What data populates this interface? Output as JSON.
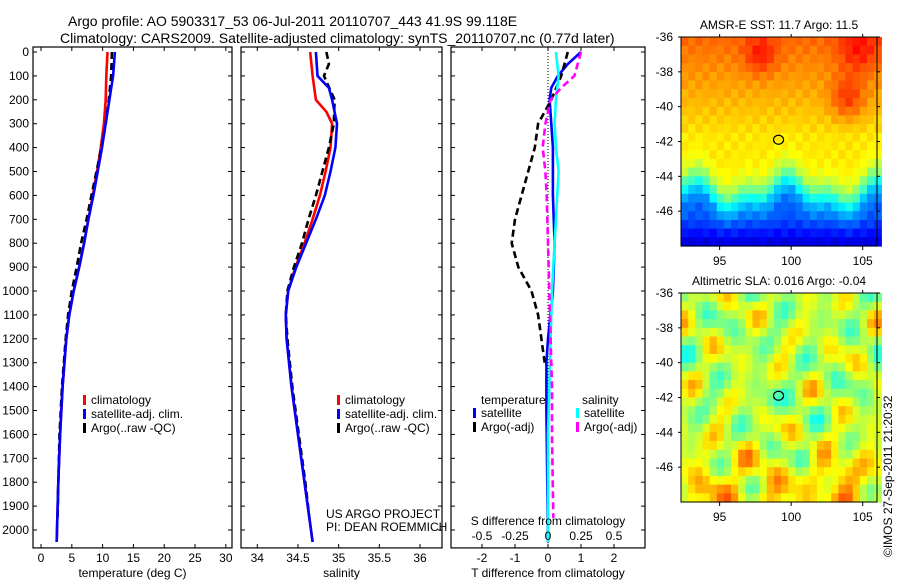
{
  "title_line1": "Argo profile: AO 5903317_53 06-Jul-2011 20110707_443 41.9S 99.118E",
  "title_line2": "Climatology: CARS2009. Satellite-adjusted climatology: synTS_20110707.nc (0.77d later)",
  "project_line1": "US ARGO PROJECT",
  "project_line2": "PI: DEAN ROEMMICH",
  "copyright": "©IMOS 27-Sep-2011 21:20:32",
  "colors": {
    "climatology": "#ff0000",
    "satellite": "#0000ff",
    "argo": "#000000",
    "sal_satellite": "#00ffff",
    "sal_argo": "#ff00ff"
  },
  "chart_data": [
    {
      "type": "line",
      "title": "",
      "xlabel": "temperature (deg C)",
      "ylabel": "",
      "xlim": [
        -1.3,
        31
      ],
      "ylim": [
        2075,
        0
      ],
      "xticks": [
        0,
        5,
        10,
        15,
        20,
        25,
        30
      ],
      "yticks": [
        0,
        100,
        200,
        300,
        400,
        500,
        600,
        700,
        800,
        900,
        1000,
        1100,
        1200,
        1300,
        1400,
        1500,
        1600,
        1700,
        1800,
        1900,
        2000
      ],
      "legend": [
        "climatology",
        "satellite-adj. clim.",
        "Argo(..raw -QC)"
      ],
      "legend_placement": "lower-center",
      "series": [
        {
          "name": "climatology",
          "depth": [
            0,
            100,
            200,
            300,
            400,
            500,
            600,
            700,
            800,
            900,
            1000,
            1100,
            1200,
            1400,
            1600,
            1800,
            2000,
            2050
          ],
          "values": [
            10.8,
            10.6,
            10.5,
            10.2,
            9.7,
            9.1,
            8.4,
            7.7,
            7.0,
            6.2,
            5.3,
            4.6,
            4.1,
            3.5,
            3.1,
            2.8,
            2.6,
            2.55
          ]
        },
        {
          "name": "satellite-adj. clim.",
          "depth": [
            0,
            100,
            200,
            300,
            400,
            500,
            600,
            700,
            800,
            900,
            1000,
            1100,
            1200,
            1400,
            1600,
            1800,
            2000,
            2050
          ],
          "values": [
            12.0,
            11.7,
            11.1,
            10.5,
            9.9,
            9.2,
            8.5,
            7.7,
            7.0,
            6.2,
            5.3,
            4.6,
            4.1,
            3.5,
            3.1,
            2.8,
            2.6,
            2.55
          ]
        },
        {
          "name": "Argo(..raw -QC)",
          "depth": [
            0,
            100,
            200,
            300,
            400,
            500,
            600,
            700,
            800,
            900,
            1000,
            1100,
            1200,
            1400,
            1600,
            1800,
            1950
          ],
          "values": [
            11.5,
            11.4,
            11.0,
            10.5,
            9.8,
            9.0,
            8.2,
            7.4,
            6.5,
            5.8,
            5.0,
            4.4,
            4.0,
            3.4,
            3.0,
            2.8,
            2.7
          ]
        }
      ]
    },
    {
      "type": "line",
      "xlabel": "salinity",
      "xlim": [
        33.8,
        36.27
      ],
      "ylim": [
        2075,
        0
      ],
      "xticks": [
        34,
        34.5,
        35,
        35.5,
        36
      ],
      "legend": [
        "climatology",
        "satellite-adj. clim.",
        "Argo(..raw -QC)"
      ],
      "legend_placement": "lower-center",
      "series": [
        {
          "name": "climatology",
          "depth": [
            0,
            100,
            200,
            250,
            300,
            400,
            500,
            600,
            700,
            800,
            900,
            1000,
            1100,
            1200,
            1400,
            1600,
            1800,
            2000,
            2050
          ],
          "values": [
            34.65,
            34.68,
            34.72,
            34.85,
            34.92,
            34.9,
            34.84,
            34.77,
            34.68,
            34.58,
            34.47,
            34.38,
            34.35,
            34.36,
            34.42,
            34.5,
            34.58,
            34.66,
            34.68
          ]
        },
        {
          "name": "satellite-adj. clim.",
          "depth": [
            0,
            100,
            150,
            200,
            300,
            400,
            500,
            600,
            700,
            800,
            900,
            1000,
            1100,
            1200,
            1400,
            1600,
            1800,
            2000,
            2050
          ],
          "values": [
            34.72,
            34.74,
            34.88,
            34.92,
            34.98,
            34.96,
            34.9,
            34.83,
            34.72,
            34.6,
            34.48,
            34.38,
            34.35,
            34.36,
            34.42,
            34.5,
            34.58,
            34.66,
            34.68
          ]
        },
        {
          "name": "Argo(..raw -QC)",
          "depth": [
            0,
            50,
            100,
            200,
            300,
            400,
            500,
            600,
            700,
            800,
            900,
            1000,
            1100,
            1200,
            1400,
            1600,
            1800,
            1950
          ],
          "values": [
            34.85,
            34.88,
            34.82,
            34.95,
            34.94,
            34.88,
            34.8,
            34.72,
            34.63,
            34.55,
            34.45,
            34.37,
            34.35,
            34.37,
            34.43,
            34.51,
            34.59,
            34.64
          ]
        }
      ]
    },
    {
      "type": "line",
      "xlabel": "T difference from climatology",
      "x2label": "S difference from climatology",
      "xlim": [
        -2.94,
        2.94
      ],
      "x2lim": [
        -0.735,
        0.735
      ],
      "ylim": [
        2075,
        0
      ],
      "xticks": [
        -2,
        -1,
        0,
        1,
        2
      ],
      "x2ticks": [
        -0.5,
        -0.25,
        0,
        0.25,
        0.5
      ],
      "x2ticklabels": [
        "-0.5",
        "-0.25",
        "0",
        "0.25",
        "0.5"
      ],
      "legend_temperature_title": "temperature",
      "legend_salinity_title": "salinity",
      "legend_labels": [
        "satellite",
        "Argo(-adj)"
      ],
      "series": [
        {
          "name": "temperature satellite",
          "axis": "T",
          "depth": [
            0,
            50,
            100,
            150,
            200,
            300,
            400,
            600,
            800,
            1000,
            1200,
            1300,
            1500,
            2050
          ],
          "values": [
            1.0,
            0.6,
            0.3,
            0.1,
            0.05,
            0.1,
            0.15,
            0.15,
            0.2,
            0.15,
            0.0,
            -0.05,
            -0.05,
            0.0
          ]
        },
        {
          "name": "temperature Argo(-adj)",
          "axis": "T",
          "depth": [
            0,
            100,
            200,
            300,
            400,
            500,
            600,
            700,
            800,
            900,
            1000,
            1100,
            1200,
            1300
          ],
          "values": [
            0.6,
            0.4,
            0.1,
            -0.3,
            -0.4,
            -0.6,
            -0.8,
            -1.0,
            -1.1,
            -0.9,
            -0.5,
            -0.3,
            -0.2,
            -0.1
          ],
          "dashed": true
        },
        {
          "name": "salinity satellite",
          "axis": "S",
          "depth": [
            0,
            100,
            200,
            300,
            400,
            500,
            600,
            800,
            1000,
            1200,
            1400,
            1600,
            2050
          ],
          "values": [
            0.06,
            0.08,
            0.06,
            0.05,
            0.06,
            0.08,
            0.07,
            0.05,
            0.03,
            0.02,
            0.01,
            0.0,
            0.0
          ]
        },
        {
          "name": "salinity Argo(-adj)",
          "axis": "S",
          "depth": [
            0,
            100,
            150,
            200,
            300,
            400,
            500,
            600,
            800,
            1000,
            1200,
            1400,
            1600,
            1950
          ],
          "values": [
            0.25,
            0.2,
            0.1,
            0.02,
            -0.02,
            -0.04,
            -0.02,
            -0.01,
            0.0,
            0.01,
            0.02,
            0.03,
            0.03,
            0.04
          ],
          "dashed": true
        }
      ]
    },
    {
      "type": "heatmap",
      "title": "AMSR-E SST: 11.7 Argo: 11.5",
      "xlim": [
        92.3,
        106
      ],
      "ylim": [
        -48,
        -36
      ],
      "xticks": [
        95,
        100,
        105
      ],
      "yticks": [
        -36,
        -38,
        -40,
        -42,
        -44,
        -46
      ],
      "marker": {
        "lon": 99.118,
        "lat": -41.9
      }
    },
    {
      "type": "heatmap",
      "title": "Altimetric SLA: 0.016 Argo: -0.04",
      "xlim": [
        92.3,
        106
      ],
      "ylim": [
        -48,
        -36
      ],
      "xticks": [
        95,
        100,
        105
      ],
      "yticks": [
        -36,
        -38,
        -40,
        -42,
        -44,
        -46
      ],
      "marker": {
        "lon": 99.118,
        "lat": -41.9
      }
    }
  ]
}
